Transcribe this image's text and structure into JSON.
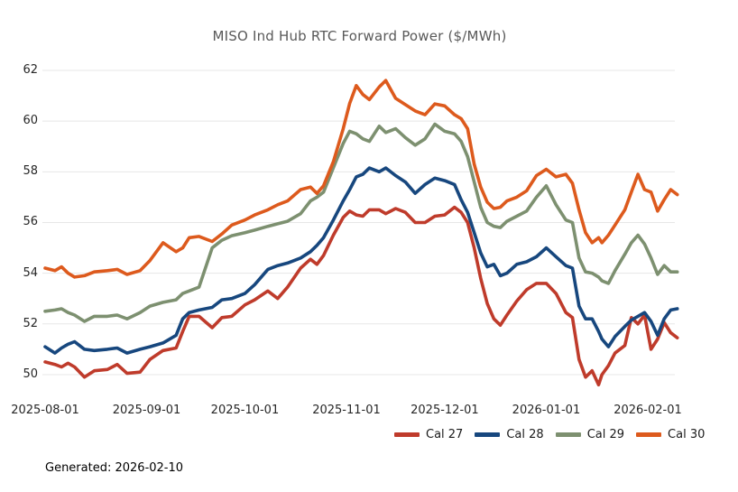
{
  "chart_data": {
    "type": "line",
    "title": "MISO Ind Hub RTC Forward Power ($/MWh)",
    "xlabel": "",
    "ylabel": "",
    "grid": "horizontal",
    "legend_position": "bottom-right",
    "ylim": [
      49.3,
      62.6
    ],
    "yticks": [
      50,
      52,
      54,
      56,
      58,
      60,
      62
    ],
    "xticks": [
      "2025-08-01",
      "2025-09-01",
      "2025-10-01",
      "2025-11-01",
      "2025-12-01",
      "2026-01-01",
      "2026-02-01"
    ],
    "x": [
      "2025-08-01",
      "2025-08-04",
      "2025-08-06",
      "2025-08-08",
      "2025-08-10",
      "2025-08-13",
      "2025-08-16",
      "2025-08-20",
      "2025-08-23",
      "2025-08-26",
      "2025-08-30",
      "2025-09-02",
      "2025-09-06",
      "2025-09-10",
      "2025-09-12",
      "2025-09-14",
      "2025-09-17",
      "2025-09-21",
      "2025-09-24",
      "2025-09-27",
      "2025-10-01",
      "2025-10-04",
      "2025-10-08",
      "2025-10-11",
      "2025-10-14",
      "2025-10-18",
      "2025-10-21",
      "2025-10-23",
      "2025-10-25",
      "2025-10-28",
      "2025-10-31",
      "2025-11-02",
      "2025-11-04",
      "2025-11-06",
      "2025-11-08",
      "2025-11-11",
      "2025-11-13",
      "2025-11-16",
      "2025-11-19",
      "2025-11-22",
      "2025-11-25",
      "2025-11-28",
      "2025-12-01",
      "2025-12-04",
      "2025-12-06",
      "2025-12-08",
      "2025-12-10",
      "2025-12-12",
      "2025-12-14",
      "2025-12-16",
      "2025-12-18",
      "2025-12-20",
      "2025-12-23",
      "2025-12-26",
      "2025-12-29",
      "2026-01-01",
      "2026-01-04",
      "2026-01-07",
      "2026-01-09",
      "2026-01-11",
      "2026-01-13",
      "2026-01-15",
      "2026-01-17",
      "2026-01-18",
      "2026-01-20",
      "2026-01-22",
      "2026-01-25",
      "2026-01-27",
      "2026-01-29",
      "2026-01-31",
      "2026-02-02",
      "2026-02-04",
      "2026-02-06",
      "2026-02-08",
      "2026-02-10"
    ],
    "series": [
      {
        "name": "Cal 27",
        "color": "#bf3b2b",
        "values": [
          50.5,
          50.4,
          50.3,
          50.45,
          50.3,
          49.9,
          50.15,
          50.2,
          50.4,
          50.05,
          50.1,
          50.6,
          50.95,
          51.05,
          51.7,
          52.3,
          52.3,
          51.85,
          52.25,
          52.3,
          52.75,
          52.95,
          53.3,
          53.0,
          53.45,
          54.2,
          54.55,
          54.35,
          54.7,
          55.5,
          56.2,
          56.45,
          56.3,
          56.25,
          56.5,
          56.5,
          56.35,
          56.55,
          56.4,
          56.0,
          56.0,
          56.25,
          56.3,
          56.6,
          56.4,
          56.0,
          55.0,
          53.8,
          52.8,
          52.2,
          51.95,
          52.35,
          52.9,
          53.35,
          53.6,
          53.6,
          53.2,
          52.45,
          52.25,
          50.6,
          49.9,
          50.15,
          49.6,
          50.0,
          50.35,
          50.85,
          51.15,
          52.25,
          52.0,
          52.35,
          51.0,
          51.4,
          52.05,
          51.65,
          51.45
        ]
      },
      {
        "name": "Cal 28",
        "color": "#17477e",
        "values": [
          51.1,
          50.85,
          51.05,
          51.2,
          51.3,
          51.0,
          50.95,
          51.0,
          51.05,
          50.85,
          51.0,
          51.1,
          51.25,
          51.55,
          52.2,
          52.45,
          52.55,
          52.65,
          52.95,
          53.0,
          53.2,
          53.55,
          54.15,
          54.3,
          54.4,
          54.6,
          54.85,
          55.1,
          55.4,
          56.1,
          56.85,
          57.3,
          57.8,
          57.9,
          58.15,
          58.0,
          58.15,
          57.85,
          57.6,
          57.15,
          57.5,
          57.75,
          57.65,
          57.5,
          56.9,
          56.4,
          55.6,
          54.8,
          54.25,
          54.35,
          53.9,
          54.0,
          54.35,
          54.45,
          54.65,
          55.0,
          54.65,
          54.3,
          54.2,
          52.7,
          52.2,
          52.2,
          51.7,
          51.4,
          51.1,
          51.5,
          51.9,
          52.15,
          52.3,
          52.45,
          52.1,
          51.55,
          52.2,
          52.55,
          52.6
        ]
      },
      {
        "name": "Cal 29",
        "color": "#7d9070",
        "values": [
          52.5,
          52.55,
          52.6,
          52.45,
          52.35,
          52.1,
          52.3,
          52.3,
          52.35,
          52.2,
          52.45,
          52.7,
          52.85,
          52.95,
          53.2,
          53.3,
          53.45,
          55.0,
          55.3,
          55.48,
          55.6,
          55.7,
          55.85,
          55.95,
          56.05,
          56.35,
          56.85,
          57.0,
          57.2,
          58.16,
          59.12,
          59.6,
          59.5,
          59.3,
          59.2,
          59.8,
          59.55,
          59.7,
          59.35,
          59.05,
          59.3,
          59.88,
          59.6,
          59.5,
          59.2,
          58.6,
          57.6,
          56.6,
          56.0,
          55.85,
          55.8,
          56.05,
          56.25,
          56.45,
          57.0,
          57.45,
          56.7,
          56.1,
          56.0,
          54.6,
          54.05,
          54.0,
          53.85,
          53.7,
          53.6,
          54.1,
          54.75,
          55.2,
          55.5,
          55.15,
          54.6,
          53.95,
          54.3,
          54.05,
          54.05
        ]
      },
      {
        "name": "Cal 30",
        "color": "#dd5a1d",
        "values": [
          54.2,
          54.1,
          54.25,
          54.0,
          53.85,
          53.9,
          54.05,
          54.1,
          54.15,
          53.95,
          54.1,
          54.5,
          55.2,
          54.85,
          55.0,
          55.4,
          55.45,
          55.25,
          55.55,
          55.9,
          56.1,
          56.3,
          56.5,
          56.7,
          56.85,
          57.3,
          57.4,
          57.15,
          57.45,
          58.4,
          59.7,
          60.7,
          61.4,
          61.05,
          60.85,
          61.35,
          61.6,
          60.9,
          60.65,
          60.4,
          60.25,
          60.68,
          60.6,
          60.25,
          60.1,
          59.7,
          58.3,
          57.4,
          56.8,
          56.55,
          56.6,
          56.85,
          57.0,
          57.25,
          57.85,
          58.1,
          57.8,
          57.9,
          57.55,
          56.5,
          55.6,
          55.2,
          55.4,
          55.2,
          55.5,
          55.9,
          56.5,
          57.2,
          57.9,
          57.3,
          57.2,
          56.45,
          56.9,
          57.3,
          57.1
        ]
      }
    ]
  },
  "footer": {
    "generated": "Generated: 2026-02-10"
  },
  "colors": {
    "background": "#ffffff",
    "title": "#595959",
    "tick_label": "#262626",
    "gridline": "#e7e7e7"
  }
}
